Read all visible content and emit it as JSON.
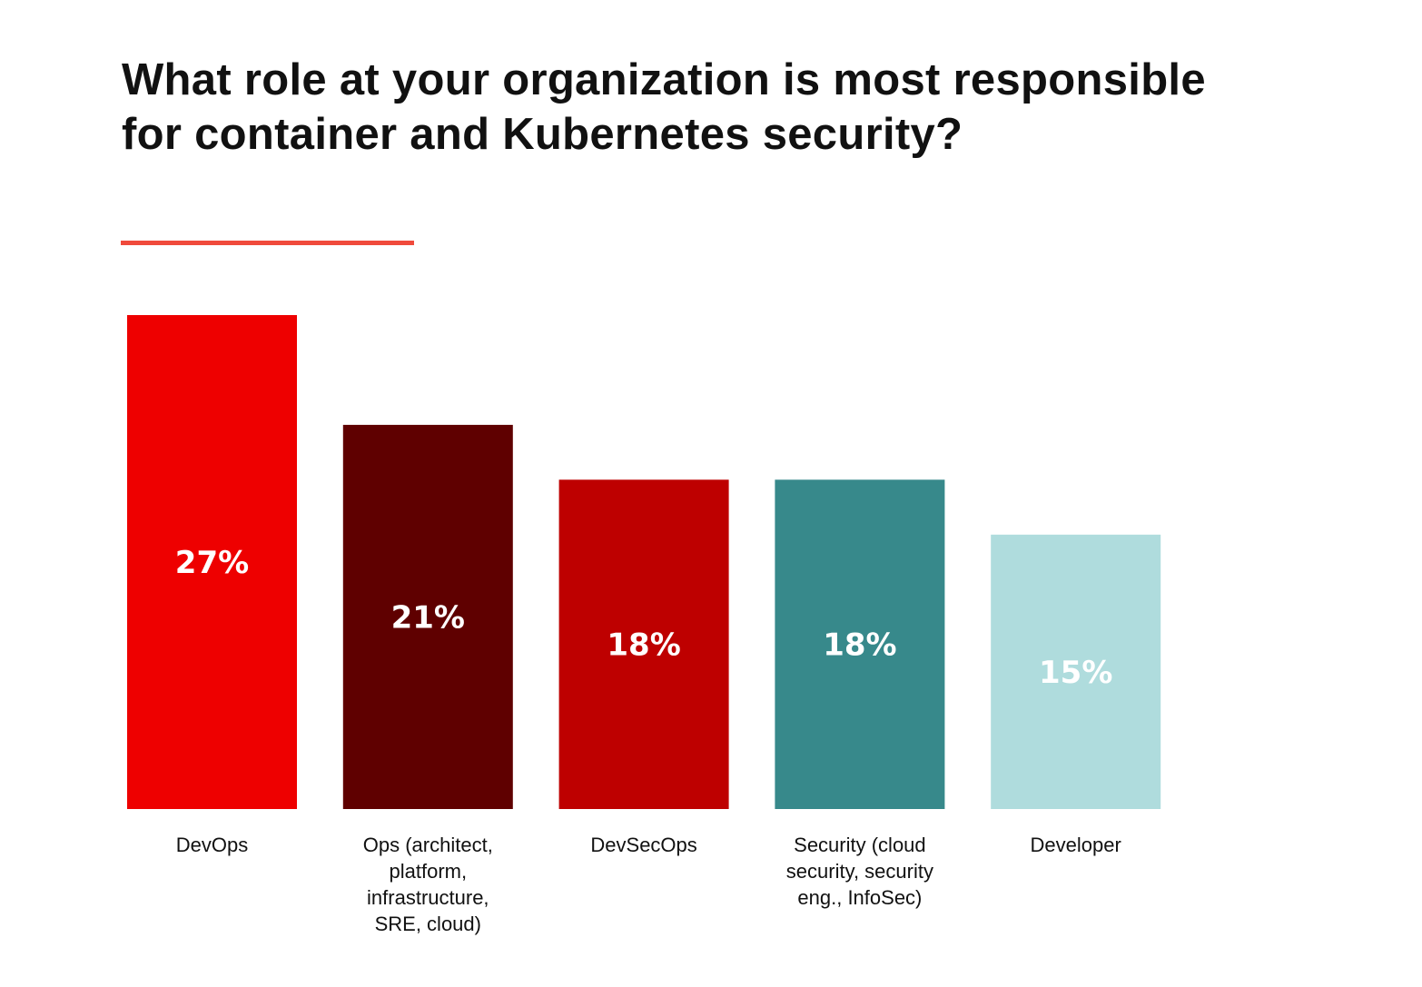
{
  "title_lines": [
    "What role at your organization is most responsible",
    "for container and Kubernetes security?"
  ],
  "accent_color": "#f04a3c",
  "chart_data": {
    "type": "bar",
    "title": "What role at your organization is most responsible for container and Kubernetes security?",
    "categories": [
      [
        "DevOps"
      ],
      [
        "Ops (architect,",
        "platform,",
        "infrastructure,",
        "SRE, cloud)"
      ],
      [
        "DevSecOps"
      ],
      [
        "Security (cloud",
        "security, security",
        "eng., InfoSec)"
      ],
      [
        "Developer"
      ]
    ],
    "values": [
      27,
      21,
      18,
      18,
      15
    ],
    "value_labels": [
      "27%",
      "21%",
      "18%",
      "18%",
      "15%"
    ],
    "colors": [
      "#ee0000",
      "#5f0000",
      "#be0000",
      "#37898b",
      "#afdcdd"
    ],
    "unit": "%",
    "ylim": [
      0,
      27
    ],
    "grid": false,
    "legend": "none"
  }
}
